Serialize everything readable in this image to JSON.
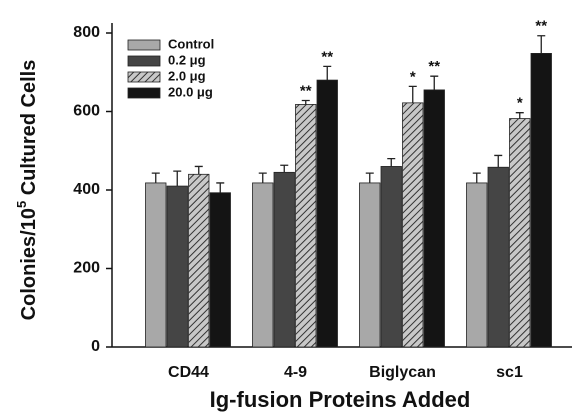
{
  "chart_data": {
    "type": "bar",
    "ylabel": {
      "base": "Colonies/10",
      "sup": "5",
      "rest": " Cultured Cells"
    },
    "xlabel": "Ig-fusion Proteins Added",
    "categories": [
      "CD44",
      "4-9",
      "Biglycan",
      "sc1"
    ],
    "series": [
      {
        "name": "Control",
        "color": "#a8a8a8",
        "values": [
          418,
          418,
          418,
          418
        ],
        "errors": [
          25,
          25,
          25,
          25
        ],
        "significance": [
          null,
          null,
          null,
          null
        ]
      },
      {
        "name": "0.2 μg",
        "color": "#454545",
        "values": [
          410,
          445,
          460,
          458
        ],
        "errors": [
          38,
          18,
          20,
          30
        ],
        "significance": [
          null,
          null,
          null,
          null
        ]
      },
      {
        "name": "2.0 μg",
        "color": "#b8b8b8",
        "pattern": "hatch",
        "values": [
          440,
          618,
          622,
          582
        ],
        "errors": [
          20,
          10,
          42,
          15
        ],
        "significance": [
          null,
          "**",
          "*",
          "*"
        ]
      },
      {
        "name": "20.0 μg",
        "color": "#141414",
        "values": [
          393,
          680,
          655,
          748
        ],
        "errors": [
          25,
          35,
          35,
          45
        ],
        "significance": [
          null,
          "**",
          "**",
          "**"
        ]
      }
    ],
    "ylim": [
      0,
      800
    ],
    "yticks": [
      0,
      200,
      400,
      600,
      800
    ],
    "legend": "upper left"
  }
}
